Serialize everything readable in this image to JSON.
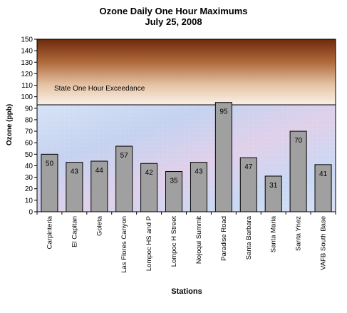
{
  "chart_data": {
    "type": "bar",
    "title": "Ozone Daily One Hour Maximums",
    "subtitle": "July 25,  2008",
    "xlabel": "Stations",
    "ylabel": "Ozone (ppb)",
    "ylim": [
      0,
      150
    ],
    "yticks": [
      0,
      10,
      20,
      30,
      40,
      50,
      60,
      70,
      80,
      90,
      100,
      110,
      120,
      130,
      140,
      150
    ],
    "categories": [
      "Carpinteria",
      "El Capitan",
      "Goleta",
      "Las Flores Canyon",
      "Lompoc HS and P",
      "Lompoc H Street",
      "Nojoqui Summit",
      "Paradise Road",
      "Santa Barbara",
      "Santa Maria",
      "Santa Ynez",
      "VAFB South Base"
    ],
    "values": [
      50,
      43,
      44,
      57,
      42,
      35,
      43,
      95,
      47,
      31,
      70,
      41
    ],
    "threshold": {
      "label": "State One Hour Exceedance",
      "value": 93
    },
    "grid": false,
    "legend": "none",
    "colors": {
      "bar_fill": "#a0a0a0",
      "bar_stroke": "#000000",
      "exceedance_top": "#6e2a0c",
      "exceedance_bottom": "#f8ece2",
      "background": "#c8d8f0"
    }
  }
}
